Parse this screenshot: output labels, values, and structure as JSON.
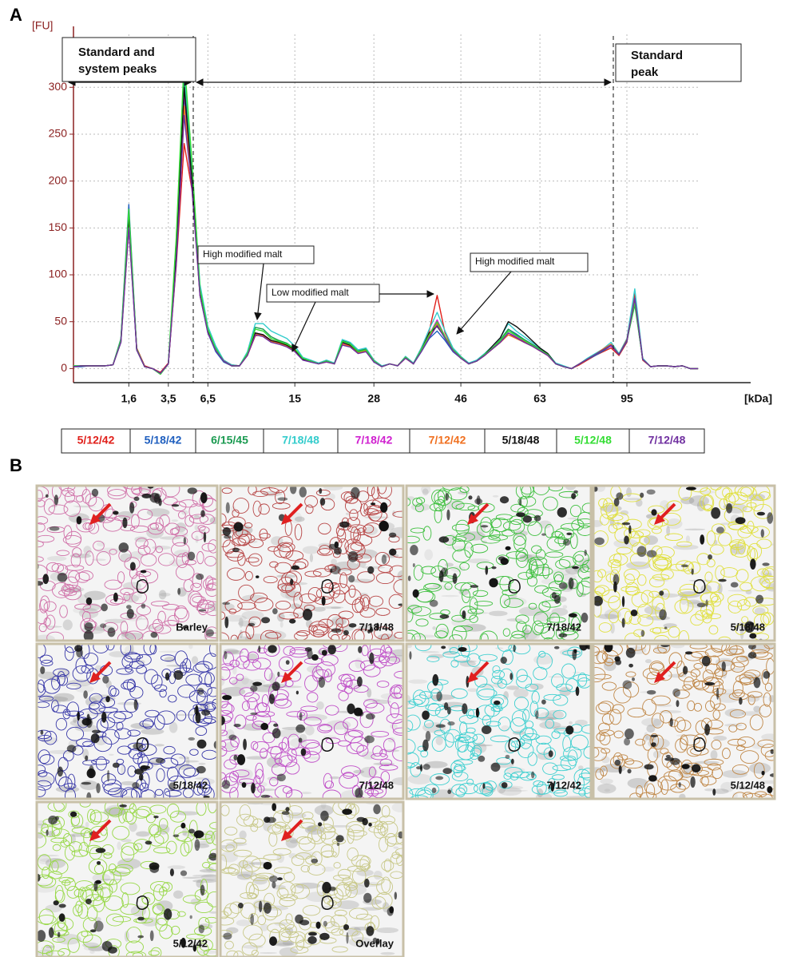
{
  "panel_labels": [
    "A",
    "B"
  ],
  "chart_data": {
    "type": "line",
    "y_label": "[FU]",
    "x_label": "[kDa]",
    "annotations": [
      "Standard and",
      "system peaks",
      "Standard",
      "peak",
      "High modified malt",
      "Low modified malt",
      "High modified malt"
    ],
    "categories": [
      null,
      null,
      null,
      null,
      null,
      null,
      null,
      "1,6",
      null,
      null,
      null,
      null,
      "3,5",
      null,
      null,
      null,
      null,
      "6,5",
      null,
      null,
      null,
      null,
      null,
      null,
      null,
      null,
      null,
      null,
      "15",
      null,
      null,
      null,
      null,
      null,
      null,
      null,
      null,
      null,
      "28",
      null,
      null,
      null,
      null,
      null,
      null,
      null,
      null,
      null,
      null,
      "46",
      null,
      null,
      null,
      null,
      null,
      null,
      null,
      null,
      null,
      "63",
      null,
      null,
      null,
      null,
      null,
      null,
      null,
      null,
      null,
      null,
      "95",
      null,
      null,
      null,
      null,
      null,
      null,
      null,
      null,
      null
    ],
    "ylim": [
      -15,
      365
    ],
    "yticks": [
      0,
      50,
      100,
      150,
      200,
      250,
      300
    ],
    "grid": true,
    "series": [
      {
        "name": "5/12/42",
        "color": "#e0201b",
        "values": [
          2,
          3,
          3,
          3,
          3,
          4,
          28,
          150,
          22,
          3,
          0,
          -4,
          6,
          110,
          240,
          190,
          85,
          42,
          22,
          9,
          4,
          3,
          14,
          35,
          36,
          30,
          27,
          24,
          19,
          10,
          8,
          5,
          7,
          5,
          26,
          24,
          17,
          19,
          8,
          2,
          5,
          3,
          11,
          5,
          22,
          40,
          78,
          38,
          21,
          12,
          5,
          8,
          14,
          21,
          28,
          36,
          33,
          29,
          24,
          19,
          14,
          5,
          2,
          0,
          4,
          9,
          14,
          18,
          22,
          14,
          28,
          80,
          9,
          2,
          3,
          3,
          2,
          3,
          0,
          0
        ]
      },
      {
        "name": "5/18/42",
        "color": "#1f5fbf",
        "values": [
          2,
          2,
          3,
          3,
          3,
          4,
          32,
          175,
          20,
          2,
          0,
          -5,
          5,
          125,
          290,
          210,
          78,
          38,
          18,
          7,
          3,
          3,
          14,
          38,
          36,
          29,
          27,
          24,
          19,
          10,
          7,
          5,
          8,
          5,
          27,
          24,
          17,
          19,
          7,
          2,
          5,
          3,
          12,
          5,
          18,
          32,
          40,
          30,
          18,
          11,
          5,
          8,
          14,
          22,
          30,
          42,
          37,
          31,
          26,
          20,
          15,
          5,
          2,
          0,
          5,
          10,
          14,
          19,
          24,
          15,
          29,
          72,
          10,
          2,
          3,
          3,
          2,
          3,
          0,
          0
        ]
      },
      {
        "name": "6/15/45",
        "color": "#1a9a50",
        "values": [
          3,
          3,
          3,
          3,
          3,
          4,
          30,
          165,
          20,
          2,
          0,
          -6,
          5,
          130,
          310,
          205,
          82,
          42,
          22,
          8,
          3,
          3,
          16,
          44,
          42,
          34,
          30,
          27,
          21,
          11,
          8,
          6,
          8,
          5,
          30,
          27,
          19,
          21,
          9,
          2,
          5,
          3,
          12,
          5,
          20,
          36,
          50,
          34,
          20,
          12,
          5,
          8,
          15,
          22,
          31,
          42,
          36,
          31,
          26,
          21,
          15,
          5,
          2,
          0,
          5,
          10,
          15,
          20,
          25,
          15,
          30,
          68,
          10,
          2,
          3,
          3,
          2,
          3,
          0,
          0
        ]
      },
      {
        "name": "7/18/48",
        "color": "#33cccc",
        "values": [
          3,
          3,
          3,
          3,
          3,
          4,
          28,
          155,
          20,
          2,
          0,
          -5,
          5,
          135,
          320,
          215,
          90,
          45,
          24,
          9,
          4,
          3,
          18,
          48,
          48,
          40,
          36,
          32,
          24,
          12,
          9,
          6,
          9,
          6,
          31,
          28,
          20,
          22,
          9,
          3,
          5,
          3,
          13,
          6,
          22,
          42,
          60,
          40,
          22,
          13,
          6,
          9,
          16,
          24,
          33,
          48,
          40,
          34,
          28,
          22,
          16,
          6,
          3,
          0,
          5,
          11,
          16,
          21,
          28,
          16,
          32,
          85,
          11,
          2,
          3,
          3,
          2,
          3,
          0,
          0
        ]
      },
      {
        "name": "7/18/42",
        "color": "#d020d0",
        "values": [
          2,
          3,
          3,
          3,
          3,
          4,
          30,
          160,
          20,
          2,
          0,
          -5,
          5,
          118,
          295,
          198,
          80,
          40,
          20,
          8,
          3,
          3,
          15,
          38,
          36,
          30,
          28,
          25,
          20,
          10,
          8,
          5,
          8,
          5,
          27,
          25,
          18,
          20,
          8,
          2,
          5,
          3,
          12,
          5,
          20,
          36,
          52,
          34,
          20,
          12,
          5,
          8,
          15,
          22,
          29,
          38,
          34,
          30,
          25,
          20,
          15,
          5,
          2,
          0,
          5,
          10,
          15,
          20,
          24,
          15,
          30,
          75,
          10,
          2,
          3,
          3,
          2,
          3,
          0,
          0
        ]
      },
      {
        "name": "7/12/42",
        "color": "#f07020",
        "values": [
          2,
          3,
          3,
          3,
          3,
          4,
          29,
          158,
          21,
          2,
          0,
          -5,
          5,
          115,
          280,
          195,
          78,
          39,
          20,
          8,
          3,
          3,
          14,
          37,
          35,
          29,
          27,
          24,
          19,
          10,
          8,
          5,
          8,
          5,
          26,
          24,
          17,
          19,
          8,
          2,
          5,
          3,
          12,
          5,
          19,
          34,
          48,
          33,
          19,
          11,
          5,
          8,
          14,
          21,
          28,
          36,
          32,
          28,
          24,
          19,
          14,
          5,
          2,
          0,
          5,
          10,
          15,
          21,
          26,
          15,
          31,
          74,
          10,
          2,
          3,
          3,
          2,
          3,
          0,
          0
        ]
      },
      {
        "name": "5/18/48",
        "color": "#111111",
        "values": [
          2,
          3,
          3,
          3,
          3,
          4,
          30,
          162,
          20,
          2,
          0,
          -5,
          5,
          120,
          300,
          200,
          80,
          40,
          20,
          8,
          3,
          3,
          15,
          38,
          36,
          30,
          28,
          25,
          20,
          10,
          8,
          5,
          8,
          5,
          28,
          25,
          18,
          20,
          8,
          2,
          5,
          3,
          12,
          5,
          20,
          38,
          45,
          33,
          20,
          12,
          5,
          8,
          15,
          24,
          33,
          50,
          45,
          38,
          30,
          22,
          16,
          5,
          2,
          0,
          5,
          10,
          15,
          20,
          25,
          15,
          30,
          72,
          10,
          2,
          3,
          3,
          2,
          3,
          0,
          0
        ]
      },
      {
        "name": "5/12/48",
        "color": "#33dd33",
        "values": [
          3,
          3,
          3,
          3,
          3,
          4,
          31,
          170,
          21,
          2,
          0,
          -6,
          5,
          140,
          330,
          220,
          85,
          42,
          21,
          8,
          3,
          3,
          16,
          42,
          40,
          32,
          29,
          26,
          21,
          11,
          8,
          5,
          8,
          5,
          29,
          26,
          18,
          20,
          8,
          2,
          5,
          3,
          12,
          5,
          20,
          36,
          50,
          34,
          20,
          12,
          5,
          8,
          15,
          22,
          30,
          40,
          35,
          30,
          25,
          20,
          15,
          5,
          2,
          0,
          5,
          10,
          15,
          20,
          25,
          15,
          30,
          70,
          10,
          2,
          3,
          3,
          2,
          3,
          0,
          0
        ]
      },
      {
        "name": "7/12/48",
        "color": "#7030a0",
        "values": [
          2,
          3,
          3,
          3,
          3,
          4,
          28,
          150,
          20,
          2,
          0,
          -5,
          5,
          112,
          270,
          190,
          78,
          38,
          19,
          8,
          3,
          3,
          14,
          36,
          34,
          28,
          26,
          23,
          18,
          9,
          7,
          5,
          7,
          5,
          25,
          23,
          16,
          18,
          7,
          2,
          5,
          3,
          11,
          5,
          18,
          33,
          46,
          32,
          19,
          11,
          5,
          8,
          14,
          21,
          28,
          38,
          33,
          28,
          24,
          19,
          14,
          5,
          2,
          0,
          5,
          10,
          15,
          20,
          25,
          15,
          30,
          75,
          10,
          2,
          3,
          3,
          2,
          3,
          0,
          0
        ]
      }
    ]
  },
  "gels": [
    {
      "label": "Barley",
      "tint": "#d070a8"
    },
    {
      "label": "7/18/48",
      "tint": "#b84848"
    },
    {
      "label": "7/18/42",
      "tint": "#40c040"
    },
    {
      "label": "5/18/48",
      "tint": "#e0e040"
    },
    {
      "label": "5/18/42",
      "tint": "#3838a8"
    },
    {
      "label": "7/12/48",
      "tint": "#c050c8"
    },
    {
      "label": "7/12/42",
      "tint": "#40d0d0"
    },
    {
      "label": "5/12/48",
      "tint": "#c08848"
    },
    {
      "label": "5/12/42",
      "tint": "#98d848"
    },
    {
      "label": "Overlay",
      "tint": "#c8c888"
    }
  ]
}
